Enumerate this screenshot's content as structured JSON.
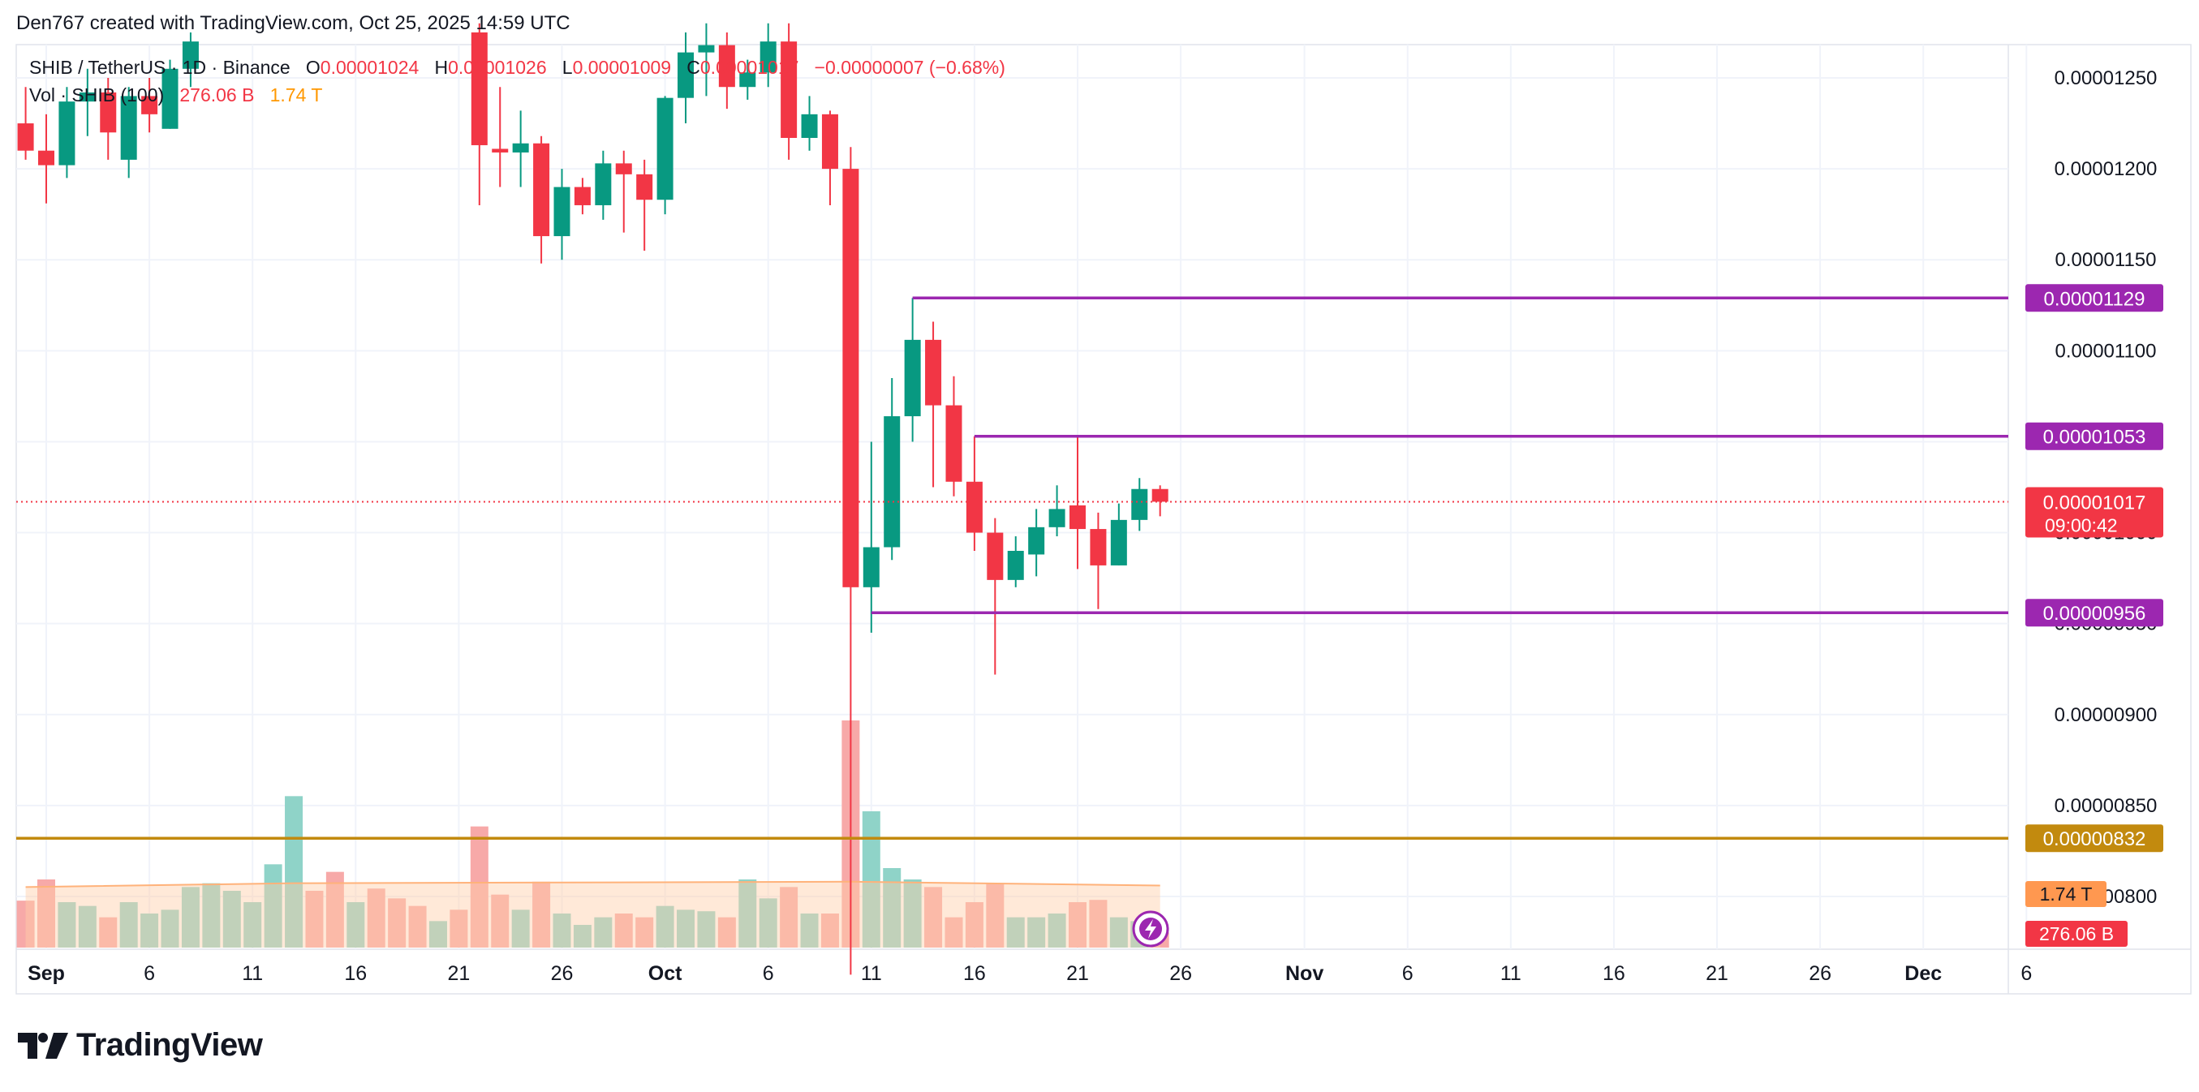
{
  "credit": "Den767 created with TradingView.com, Oct 25, 2025 14:59 UTC",
  "legend": {
    "symbol": "SHIB / TetherUS · 1D · Binance",
    "open_label": "O",
    "open": "0.00001024",
    "high_label": "H",
    "high": "0.00001026",
    "low_label": "L",
    "low": "0.00001009",
    "close_label": "C",
    "close": "0.00001017",
    "change": "−0.00000007 (−0.68%)",
    "vol_label": "Vol · SHIB (100)",
    "vol_value": "276.06 B",
    "vol_ma": "1.74 T"
  },
  "brand": {
    "name": "TradingView",
    "logo": "tradingview-logo"
  },
  "colors": {
    "up": "#089981",
    "down": "#f23645",
    "level": "#9c27b0",
    "support": "#c28a0e",
    "vol_up": "#8fd3c8",
    "vol_down": "#f7a9a8",
    "vol_ma": "#ffcfa8"
  },
  "chart_data": {
    "type": "candlestick",
    "ylim": [
      7.7e-06,
      1.27e-05
    ],
    "y_ticks": [
      "0.00001250",
      "0.00001200",
      "0.00001150",
      "0.00001100",
      "0.00001050",
      "0.00001000",
      "0.00000950",
      "0.00000900",
      "0.00000850",
      "0.00000800"
    ],
    "x_ticks": [
      {
        "date": "2025-09-01",
        "label": "Sep",
        "bold": true
      },
      {
        "date": "2025-09-06",
        "label": "6"
      },
      {
        "date": "2025-09-11",
        "label": "11"
      },
      {
        "date": "2025-09-16",
        "label": "16"
      },
      {
        "date": "2025-09-21",
        "label": "21"
      },
      {
        "date": "2025-09-26",
        "label": "26"
      },
      {
        "date": "2025-10-01",
        "label": "Oct",
        "bold": true
      },
      {
        "date": "2025-10-06",
        "label": "6"
      },
      {
        "date": "2025-10-11",
        "label": "11"
      },
      {
        "date": "2025-10-16",
        "label": "16"
      },
      {
        "date": "2025-10-21",
        "label": "21"
      },
      {
        "date": "2025-10-26",
        "label": "26"
      },
      {
        "date": "2025-11-01",
        "label": "Nov",
        "bold": true
      },
      {
        "date": "2025-11-06",
        "label": "6"
      },
      {
        "date": "2025-11-11",
        "label": "11"
      },
      {
        "date": "2025-11-16",
        "label": "16"
      },
      {
        "date": "2025-11-21",
        "label": "21"
      },
      {
        "date": "2025-11-26",
        "label": "26"
      },
      {
        "date": "2025-12-01",
        "label": "Dec",
        "bold": true
      },
      {
        "date": "2025-12-06",
        "label": "6"
      }
    ],
    "x_range": [
      "2025-09-01",
      "2025-12-06"
    ],
    "candles": [
      {
        "date": "2025-08-31",
        "o": 1.225e-05,
        "h": 1.245e-05,
        "l": 1.205e-05,
        "c": 1.21e-05
      },
      {
        "date": "2025-09-01",
        "o": 1.21e-05,
        "h": 1.23e-05,
        "l": 1.181e-05,
        "c": 1.202e-05
      },
      {
        "date": "2025-09-02",
        "o": 1.202e-05,
        "h": 1.245e-05,
        "l": 1.195e-05,
        "c": 1.237e-05
      },
      {
        "date": "2025-09-03",
        "o": 1.237e-05,
        "h": 1.255e-05,
        "l": 1.218e-05,
        "c": 1.242e-05
      },
      {
        "date": "2025-09-04",
        "o": 1.242e-05,
        "h": 1.25e-05,
        "l": 1.205e-05,
        "c": 1.22e-05
      },
      {
        "date": "2025-09-05",
        "o": 1.205e-05,
        "h": 1.245e-05,
        "l": 1.195e-05,
        "c": 1.24e-05
      },
      {
        "date": "2025-09-06",
        "o": 1.24e-05,
        "h": 1.25e-05,
        "l": 1.22e-05,
        "c": 1.23e-05
      },
      {
        "date": "2025-09-07",
        "o": 1.222e-05,
        "h": 1.26e-05,
        "l": 1.222e-05,
        "c": 1.255e-05
      },
      {
        "date": "2025-09-08",
        "o": 1.255e-05,
        "h": 1.275e-05,
        "l": 1.245e-05,
        "c": 1.27e-05
      },
      {
        "date": "2025-09-22",
        "o": 1.275e-05,
        "h": 1.28e-05,
        "l": 1.18e-05,
        "c": 1.213e-05
      },
      {
        "date": "2025-09-23",
        "o": 1.211e-05,
        "h": 1.245e-05,
        "l": 1.19e-05,
        "c": 1.209e-05
      },
      {
        "date": "2025-09-24",
        "o": 1.209e-05,
        "h": 1.232e-05,
        "l": 1.19e-05,
        "c": 1.214e-05
      },
      {
        "date": "2025-09-25",
        "o": 1.214e-05,
        "h": 1.218e-05,
        "l": 1.148e-05,
        "c": 1.163e-05
      },
      {
        "date": "2025-09-26",
        "o": 1.163e-05,
        "h": 1.2e-05,
        "l": 1.15e-05,
        "c": 1.19e-05
      },
      {
        "date": "2025-09-27",
        "o": 1.19e-05,
        "h": 1.195e-05,
        "l": 1.175e-05,
        "c": 1.18e-05
      },
      {
        "date": "2025-09-28",
        "o": 1.18e-05,
        "h": 1.21e-05,
        "l": 1.172e-05,
        "c": 1.203e-05
      },
      {
        "date": "2025-09-29",
        "o": 1.203e-05,
        "h": 1.21e-05,
        "l": 1.165e-05,
        "c": 1.197e-05
      },
      {
        "date": "2025-09-30",
        "o": 1.197e-05,
        "h": 1.205e-05,
        "l": 1.155e-05,
        "c": 1.183e-05
      },
      {
        "date": "2025-10-01",
        "o": 1.183e-05,
        "h": 1.24e-05,
        "l": 1.175e-05,
        "c": 1.239e-05
      },
      {
        "date": "2025-10-02",
        "o": 1.239e-05,
        "h": 1.275e-05,
        "l": 1.225e-05,
        "c": 1.264e-05
      },
      {
        "date": "2025-10-03",
        "o": 1.264e-05,
        "h": 1.28e-05,
        "l": 1.24e-05,
        "c": 1.268e-05
      },
      {
        "date": "2025-10-04",
        "o": 1.268e-05,
        "h": 1.275e-05,
        "l": 1.233e-05,
        "c": 1.245e-05
      },
      {
        "date": "2025-10-05",
        "o": 1.245e-05,
        "h": 1.26e-05,
        "l": 1.238e-05,
        "c": 1.253e-05
      },
      {
        "date": "2025-10-06",
        "o": 1.253e-05,
        "h": 1.28e-05,
        "l": 1.245e-05,
        "c": 1.27e-05
      },
      {
        "date": "2025-10-07",
        "o": 1.27e-05,
        "h": 1.28e-05,
        "l": 1.205e-05,
        "c": 1.217e-05
      },
      {
        "date": "2025-10-08",
        "o": 1.217e-05,
        "h": 1.24e-05,
        "l": 1.21e-05,
        "c": 1.23e-05
      },
      {
        "date": "2025-10-09",
        "o": 1.23e-05,
        "h": 1.232e-05,
        "l": 1.18e-05,
        "c": 1.2e-05
      },
      {
        "date": "2025-10-10",
        "o": 1.2e-05,
        "h": 1.212e-05,
        "l": 7.57e-06,
        "c": 9.7e-06
      },
      {
        "date": "2025-10-11",
        "o": 9.7e-06,
        "h": 1.05e-05,
        "l": 9.45e-06,
        "c": 9.92e-06
      },
      {
        "date": "2025-10-12",
        "o": 9.92e-06,
        "h": 1.085e-05,
        "l": 9.85e-06,
        "c": 1.064e-05
      },
      {
        "date": "2025-10-13",
        "o": 1.064e-05,
        "h": 1.129e-05,
        "l": 1.05e-05,
        "c": 1.106e-05
      },
      {
        "date": "2025-10-14",
        "o": 1.106e-05,
        "h": 1.116e-05,
        "l": 1.025e-05,
        "c": 1.07e-05
      },
      {
        "date": "2025-10-15",
        "o": 1.07e-05,
        "h": 1.086e-05,
        "l": 1.02e-05,
        "c": 1.028e-05
      },
      {
        "date": "2025-10-16",
        "o": 1.028e-05,
        "h": 1.053e-05,
        "l": 9.9e-06,
        "c": 1e-05
      },
      {
        "date": "2025-10-17",
        "o": 1e-05,
        "h": 1.008e-05,
        "l": 9.22e-06,
        "c": 9.74e-06
      },
      {
        "date": "2025-10-18",
        "o": 9.74e-06,
        "h": 9.98e-06,
        "l": 9.7e-06,
        "c": 9.9e-06
      },
      {
        "date": "2025-10-19",
        "o": 9.88e-06,
        "h": 1.013e-05,
        "l": 9.76e-06,
        "c": 1.003e-05
      },
      {
        "date": "2025-10-20",
        "o": 1.003e-05,
        "h": 1.026e-05,
        "l": 9.98e-06,
        "c": 1.013e-05
      },
      {
        "date": "2025-10-21",
        "o": 1.015e-05,
        "h": 1.053e-05,
        "l": 9.8e-06,
        "c": 1.002e-05
      },
      {
        "date": "2025-10-22",
        "o": 1.002e-05,
        "h": 1.011e-05,
        "l": 9.58e-06,
        "c": 9.82e-06
      },
      {
        "date": "2025-10-23",
        "o": 9.82e-06,
        "h": 1.016e-05,
        "l": 9.82e-06,
        "c": 1.007e-05
      },
      {
        "date": "2025-10-24",
        "o": 1.007e-05,
        "h": 1.03e-05,
        "l": 1.001e-05,
        "c": 1.024e-05
      },
      {
        "date": "2025-10-25",
        "o": 1.024e-05,
        "h": 1.026e-05,
        "l": 1.009e-05,
        "c": 1.017e-05
      }
    ],
    "hidden_candle_dates": [
      "2025-09-09",
      "2025-09-10",
      "2025-09-11",
      "2025-09-12",
      "2025-09-13",
      "2025-09-14",
      "2025-09-15",
      "2025-09-16",
      "2025-09-17",
      "2025-09-18",
      "2025-09-19",
      "2025-09-20",
      "2025-09-21"
    ],
    "volume": {
      "max_value": 3.0,
      "bars": [
        {
          "date": "2025-08-31",
          "v": 0.62,
          "up": false
        },
        {
          "date": "2025-09-01",
          "v": 0.9,
          "up": false
        },
        {
          "date": "2025-09-02",
          "v": 0.6,
          "up": true
        },
        {
          "date": "2025-09-03",
          "v": 0.55,
          "up": true
        },
        {
          "date": "2025-09-04",
          "v": 0.4,
          "up": false
        },
        {
          "date": "2025-09-05",
          "v": 0.6,
          "up": true
        },
        {
          "date": "2025-09-06",
          "v": 0.45,
          "up": true
        },
        {
          "date": "2025-09-07",
          "v": 0.5,
          "up": true
        },
        {
          "date": "2025-09-08",
          "v": 0.8,
          "up": true
        },
        {
          "date": "2025-09-09",
          "v": 0.85,
          "up": true
        },
        {
          "date": "2025-09-10",
          "v": 0.75,
          "up": true
        },
        {
          "date": "2025-09-11",
          "v": 0.6,
          "up": true
        },
        {
          "date": "2025-09-12",
          "v": 1.1,
          "up": true
        },
        {
          "date": "2025-09-13",
          "v": 2.0,
          "up": true
        },
        {
          "date": "2025-09-14",
          "v": 0.75,
          "up": false
        },
        {
          "date": "2025-09-15",
          "v": 1.0,
          "up": false
        },
        {
          "date": "2025-09-16",
          "v": 0.6,
          "up": true
        },
        {
          "date": "2025-09-17",
          "v": 0.78,
          "up": false
        },
        {
          "date": "2025-09-18",
          "v": 0.65,
          "up": false
        },
        {
          "date": "2025-09-19",
          "v": 0.55,
          "up": false
        },
        {
          "date": "2025-09-20",
          "v": 0.35,
          "up": true
        },
        {
          "date": "2025-09-21",
          "v": 0.5,
          "up": false
        },
        {
          "date": "2025-09-22",
          "v": 1.6,
          "up": false
        },
        {
          "date": "2025-09-23",
          "v": 0.7,
          "up": false
        },
        {
          "date": "2025-09-24",
          "v": 0.5,
          "up": true
        },
        {
          "date": "2025-09-25",
          "v": 0.87,
          "up": false
        },
        {
          "date": "2025-09-26",
          "v": 0.45,
          "up": true
        },
        {
          "date": "2025-09-27",
          "v": 0.3,
          "up": true
        },
        {
          "date": "2025-09-28",
          "v": 0.4,
          "up": true
        },
        {
          "date": "2025-09-29",
          "v": 0.45,
          "up": false
        },
        {
          "date": "2025-09-30",
          "v": 0.4,
          "up": false
        },
        {
          "date": "2025-10-01",
          "v": 0.55,
          "up": true
        },
        {
          "date": "2025-10-02",
          "v": 0.5,
          "up": true
        },
        {
          "date": "2025-10-03",
          "v": 0.48,
          "up": true
        },
        {
          "date": "2025-10-04",
          "v": 0.4,
          "up": false
        },
        {
          "date": "2025-10-05",
          "v": 0.9,
          "up": true
        },
        {
          "date": "2025-10-06",
          "v": 0.65,
          "up": true
        },
        {
          "date": "2025-10-07",
          "v": 0.8,
          "up": false
        },
        {
          "date": "2025-10-08",
          "v": 0.45,
          "up": true
        },
        {
          "date": "2025-10-09",
          "v": 0.45,
          "up": false
        },
        {
          "date": "2025-10-10",
          "v": 3.0,
          "up": false
        },
        {
          "date": "2025-10-11",
          "v": 1.8,
          "up": true
        },
        {
          "date": "2025-10-12",
          "v": 1.05,
          "up": true
        },
        {
          "date": "2025-10-13",
          "v": 0.9,
          "up": true
        },
        {
          "date": "2025-10-14",
          "v": 0.8,
          "up": false
        },
        {
          "date": "2025-10-15",
          "v": 0.4,
          "up": false
        },
        {
          "date": "2025-10-16",
          "v": 0.6,
          "up": false
        },
        {
          "date": "2025-10-17",
          "v": 0.85,
          "up": false
        },
        {
          "date": "2025-10-18",
          "v": 0.4,
          "up": true
        },
        {
          "date": "2025-10-19",
          "v": 0.4,
          "up": true
        },
        {
          "date": "2025-10-20",
          "v": 0.45,
          "up": true
        },
        {
          "date": "2025-10-21",
          "v": 0.6,
          "up": false
        },
        {
          "date": "2025-10-22",
          "v": 0.63,
          "up": false
        },
        {
          "date": "2025-10-23",
          "v": 0.4,
          "up": true
        },
        {
          "date": "2025-10-24",
          "v": 0.35,
          "up": true
        },
        {
          "date": "2025-10-25",
          "v": 0.2,
          "up": false
        }
      ],
      "ma": [
        {
          "date": "2025-08-31",
          "v": 0.8
        },
        {
          "date": "2025-09-13",
          "v": 0.85
        },
        {
          "date": "2025-10-10",
          "v": 0.87
        },
        {
          "date": "2025-10-25",
          "v": 0.82
        }
      ]
    },
    "horizontal_levels": [
      {
        "price": 1.129e-05,
        "label": "0.00001129",
        "color": "#9c27b0",
        "start": "2025-10-13"
      },
      {
        "price": 1.053e-05,
        "label": "0.00001053",
        "color": "#9c27b0",
        "start": "2025-10-16"
      },
      {
        "price": 9.56e-06,
        "label": "0.00000956",
        "color": "#9c27b0",
        "start": "2025-10-11"
      },
      {
        "price": 8.32e-06,
        "label": "0.00000832",
        "color": "#c28a0e",
        "start": "2025-08-31"
      }
    ],
    "last_price": {
      "price": 1.017e-05,
      "label": "0.00001017",
      "countdown": "09:00:42",
      "color": "#f23645"
    },
    "axis_badges": [
      {
        "label": "1.74 T",
        "color": "#ff9850"
      },
      {
        "label": "276.06 B",
        "color": "#f23645"
      }
    ]
  }
}
